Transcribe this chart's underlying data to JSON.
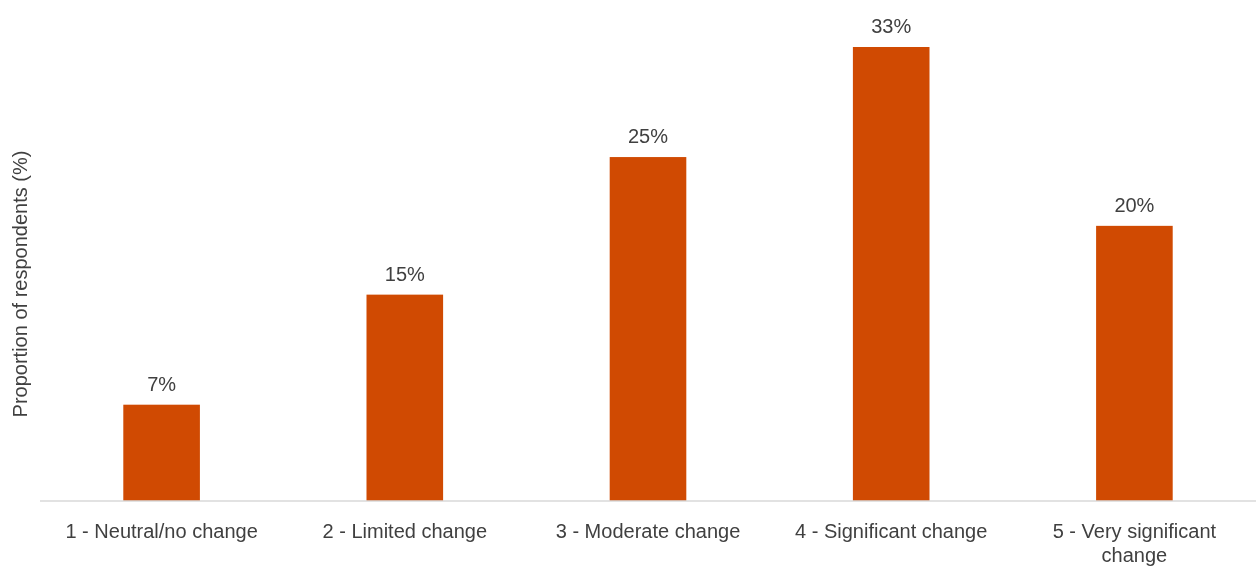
{
  "chart_data": {
    "type": "bar",
    "ylabel": "Proportion of respondents (%)",
    "categories": [
      "1 - Neutral/no change",
      "2 - Limited change",
      "3 - Moderate change",
      "4 - Significant change",
      "5 - Very significant change"
    ],
    "values": [
      7,
      15,
      25,
      33,
      20
    ],
    "value_labels": [
      "7%",
      "15%",
      "25%",
      "33%",
      "20%"
    ],
    "color": "#d04a02"
  }
}
